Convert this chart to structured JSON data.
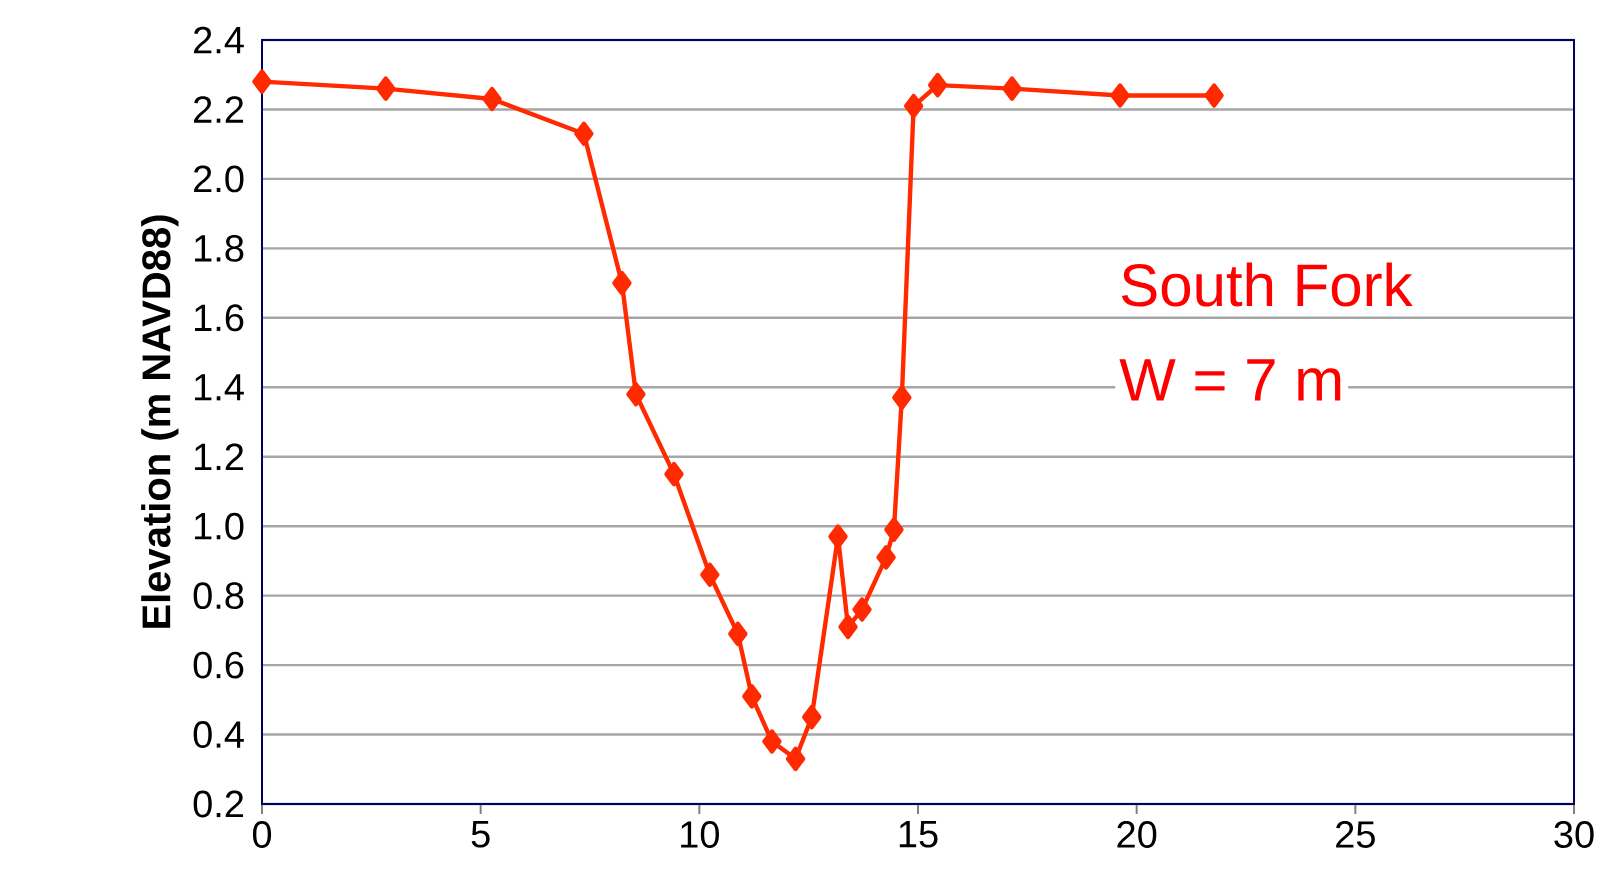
{
  "chart_data": {
    "type": "line",
    "ylabel": "Elevation (m NAVD88)",
    "x": [
      0,
      2.83,
      5.26,
      7.36,
      8.23,
      8.55,
      9.42,
      10.24,
      10.88,
      11.2,
      11.66,
      12.2,
      12.57,
      13.17,
      13.4,
      13.72,
      14.27,
      14.45,
      14.63,
      14.9,
      15.45,
      17.15,
      19.62,
      21.77
    ],
    "series": [
      {
        "color": "#ff2a00",
        "values": [
          2.28,
          2.26,
          2.23,
          2.13,
          1.7,
          1.38,
          1.15,
          0.86,
          0.69,
          0.51,
          0.38,
          0.33,
          0.45,
          0.97,
          0.71,
          0.76,
          0.91,
          0.99,
          1.37,
          2.21,
          2.27,
          2.26,
          2.24,
          2.24
        ]
      }
    ],
    "xlim": [
      0,
      30
    ],
    "xticks": [
      0,
      5,
      10,
      15,
      20,
      25,
      30
    ],
    "ylim": [
      0.2,
      2.4
    ],
    "yticks": [
      {
        "value": 0.2,
        "label": "0.2"
      },
      {
        "value": 0.4,
        "label": "0.4"
      },
      {
        "value": 0.6,
        "label": "0.6"
      },
      {
        "value": 0.8,
        "label": "0.8"
      },
      {
        "value": 1.0,
        "label": "1.0"
      },
      {
        "value": 1.2,
        "label": "1.2"
      },
      {
        "value": 1.4,
        "label": "1.4"
      },
      {
        "value": 1.6,
        "label": "1.6"
      },
      {
        "value": 1.8,
        "label": "1.8"
      },
      {
        "value": 2.0,
        "label": "2.0"
      },
      {
        "value": 2.2,
        "label": "2.2"
      },
      {
        "value": 2.4,
        "label": "2.4"
      }
    ],
    "grid": "y",
    "marker": "diamond",
    "line_style": "solid",
    "annotations": [
      "South Fork",
      "W = 7 m"
    ]
  }
}
